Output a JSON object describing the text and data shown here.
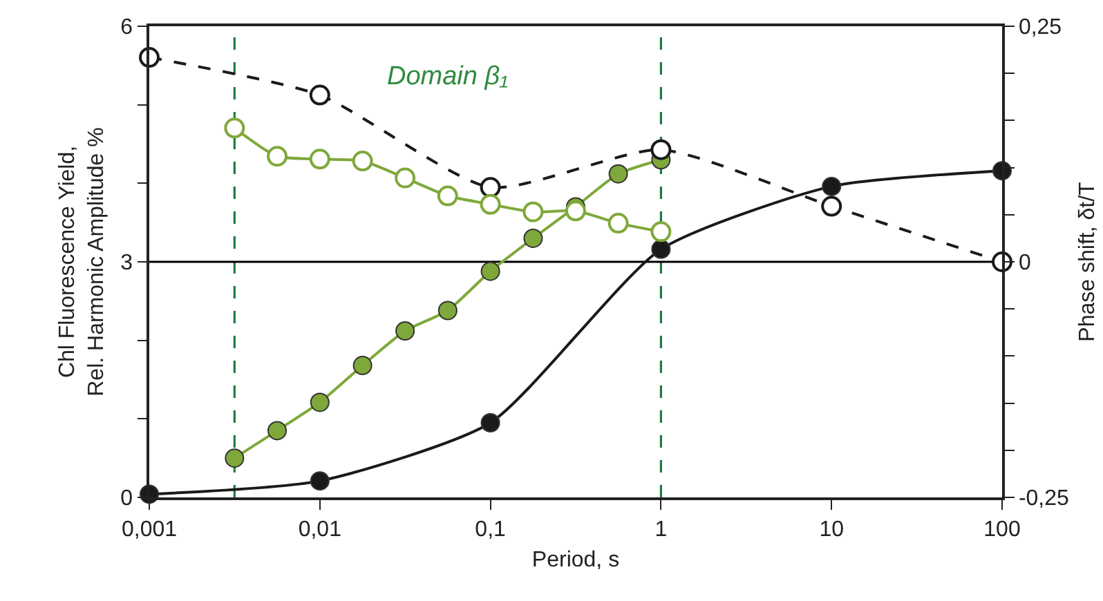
{
  "chart_data": {
    "type": "line",
    "xlabel": "Period, s",
    "ylabel": "Chl Fluorescence Yield,\nRel. Harmonic Amplitude %",
    "y2label": "Phase shift, δt/T",
    "annotations": [
      "Domain β₁"
    ],
    "log": "x",
    "grid": false,
    "marker": "circle",
    "xlim": [
      0.001,
      100
    ],
    "xticks": [
      {
        "value": 0.001,
        "label": "0,001"
      },
      {
        "value": 0.01,
        "label": "0,01"
      },
      {
        "value": 0.1,
        "label": "0,1"
      },
      1,
      10,
      100
    ],
    "ylim": [
      0,
      6
    ],
    "yticks": [
      0,
      {
        "value": 1,
        "label": null
      },
      {
        "value": 2,
        "label": null
      },
      3,
      {
        "value": 4,
        "label": null
      },
      {
        "value": 5,
        "label": null
      },
      6
    ],
    "y2lim": [
      -0.25,
      0.25
    ],
    "y2ticks": [
      {
        "value": -0.25,
        "label": "-0,25"
      },
      {
        "value": -0.2,
        "label": null
      },
      {
        "value": -0.15,
        "label": null
      },
      {
        "value": -0.1,
        "label": null
      },
      {
        "value": -0.05,
        "label": null
      },
      0,
      {
        "value": 0.05,
        "label": null
      },
      {
        "value": 0.1,
        "label": null
      },
      {
        "value": 0.15,
        "label": null
      },
      {
        "value": 0.2,
        "label": null
      },
      {
        "value": 0.25,
        "label": "0,25"
      }
    ],
    "ref_lines": [
      {
        "axis": "x",
        "value": 0.00316,
        "color": "#1f7a3f",
        "line_style": "dashed"
      },
      {
        "axis": "x",
        "value": 1,
        "color": "#1f7a3f",
        "line_style": "dashed"
      },
      {
        "axis": "y",
        "value": 3,
        "color": "#000000",
        "line_style": "solid"
      }
    ],
    "series": [
      {
        "color": "#1a1a1a",
        "line_style": "solid",
        "x": [
          0.001,
          0.01,
          0.1,
          1,
          10,
          100
        ],
        "values": [
          0.04,
          0.21,
          0.95,
          3.16,
          3.96,
          4.16
        ]
      },
      {
        "color": "#1a1a1a",
        "line_style": "dashed",
        "axis": "y2",
        "x": [
          0.001,
          0.01,
          0.1,
          1,
          10,
          100
        ],
        "values": [
          0.217,
          0.177,
          0.079,
          0.119,
          0.059,
          0.0
        ]
      },
      {
        "color": "#7fa83a",
        "line_style": "solid",
        "x": [
          0.00316,
          0.00562,
          0.01,
          0.0178,
          0.0316,
          0.0562,
          0.1,
          0.178,
          0.316,
          0.562,
          1
        ],
        "values": [
          0.5,
          0.85,
          1.21,
          1.68,
          2.12,
          2.38,
          2.88,
          3.3,
          3.7,
          4.12,
          4.3
        ]
      },
      {
        "color": "#7fa83a",
        "line_style": "solid",
        "axis": "y2",
        "x": [
          0.00316,
          0.00562,
          0.01,
          0.0178,
          0.0316,
          0.0562,
          0.1,
          0.178,
          0.316,
          0.562,
          1
        ],
        "values": [
          0.142,
          0.112,
          0.109,
          0.107,
          0.089,
          0.07,
          0.061,
          0.053,
          0.054,
          0.041,
          0.032
        ]
      }
    ]
  }
}
